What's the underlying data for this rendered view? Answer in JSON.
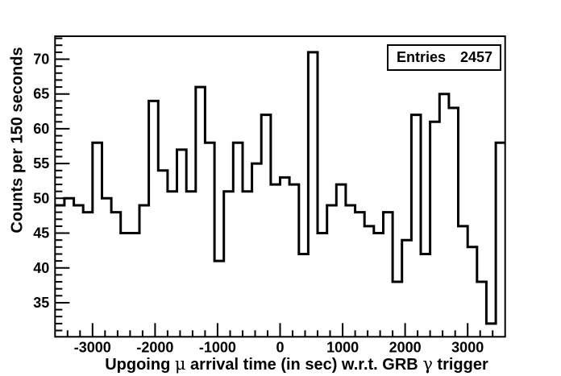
{
  "chart_data": {
    "type": "bar",
    "style": "step-outline-histogram",
    "title": "",
    "xlabel": "Upgoing μ arrival time (in sec) w.r.t. GRB γ trigger",
    "xlabel_parts": [
      {
        "text": "Upgoing ",
        "greek": false
      },
      {
        "text": "μ",
        "greek": true
      },
      {
        "text": " arrival time (in sec) w.r.t. GRB ",
        "greek": false
      },
      {
        "text": "γ",
        "greek": true
      },
      {
        "text": " trigger",
        "greek": false
      }
    ],
    "ylabel": "Counts per 150 seconds",
    "x_start": -3600,
    "bin_width_sec": 150,
    "values": [
      49,
      50,
      49,
      48,
      58,
      50,
      48,
      45,
      45,
      49,
      64,
      54,
      51,
      57,
      51,
      66,
      58,
      41,
      51,
      58,
      51,
      55,
      62,
      52,
      53,
      52,
      42,
      71,
      45,
      49,
      52,
      49,
      48,
      46,
      45,
      48,
      38,
      44,
      62,
      42,
      61,
      65,
      63,
      46,
      43,
      38,
      32,
      58
    ],
    "xlim": [
      -3600,
      3600
    ],
    "ylim": [
      30.1,
      73.3
    ],
    "x_major_ticks": [
      -3000,
      -2000,
      -1000,
      0,
      1000,
      2000,
      3000
    ],
    "x_minor_tick_step": 200,
    "y_major_ticks": [
      35,
      40,
      45,
      50,
      55,
      60,
      65,
      70
    ],
    "y_minor_tick_step": 1,
    "grid": false,
    "legend": "none"
  },
  "stats_box": {
    "entries_label": "Entries",
    "entries_value": "2457"
  },
  "colors": {
    "line": "#000000",
    "frame": "#000000",
    "text": "#000000",
    "background": "#ffffff"
  }
}
